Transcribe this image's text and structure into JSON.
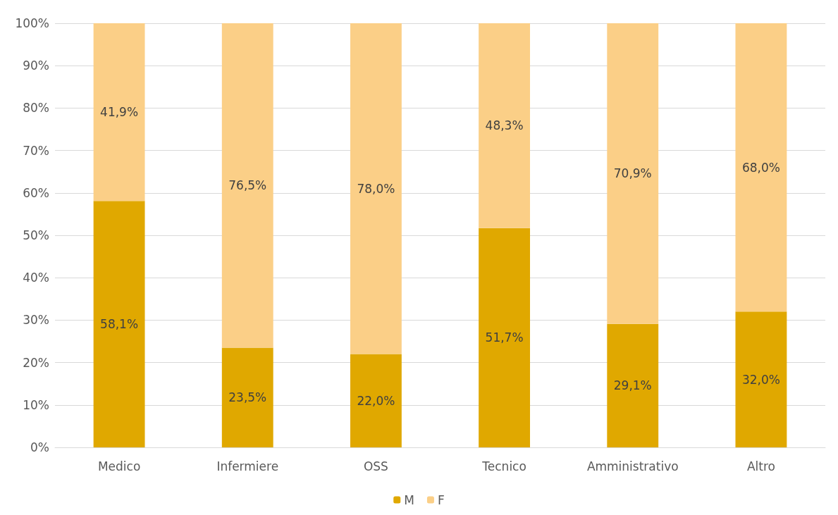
{
  "chart_data": {
    "type": "bar",
    "stacked": true,
    "categories": [
      "Medico",
      "Infermiere",
      "OSS",
      "Tecnico",
      "Amministrativo",
      "Altro"
    ],
    "series": [
      {
        "name": "M",
        "color": "#e0a800",
        "values": [
          58.1,
          23.5,
          22.0,
          51.7,
          29.1,
          32.0
        ],
        "value_labels": [
          "58,1%",
          "23,5%",
          "22,0%",
          "51,7%",
          "29,1%",
          "32,0%"
        ]
      },
      {
        "name": "F",
        "color": "#fbcf87",
        "values": [
          41.9,
          76.5,
          78.0,
          48.3,
          70.9,
          68.0
        ],
        "value_labels": [
          "41,9%",
          "76,5%",
          "78,0%",
          "48,3%",
          "70,9%",
          "68,0%"
        ]
      }
    ],
    "ylim": [
      0,
      100
    ],
    "yticks": [
      {
        "value": 0,
        "label": "0%"
      },
      {
        "value": 10,
        "label": "10%"
      },
      {
        "value": 20,
        "label": "20%"
      },
      {
        "value": 30,
        "label": "30%"
      },
      {
        "value": 40,
        "label": "40%"
      },
      {
        "value": 50,
        "label": "50%"
      },
      {
        "value": 60,
        "label": "60%"
      },
      {
        "value": 70,
        "label": "70%"
      },
      {
        "value": 80,
        "label": "80%"
      },
      {
        "value": 90,
        "label": "90%"
      },
      {
        "value": 100,
        "label": "100%"
      }
    ],
    "grid": "y",
    "legend": "bottom"
  }
}
